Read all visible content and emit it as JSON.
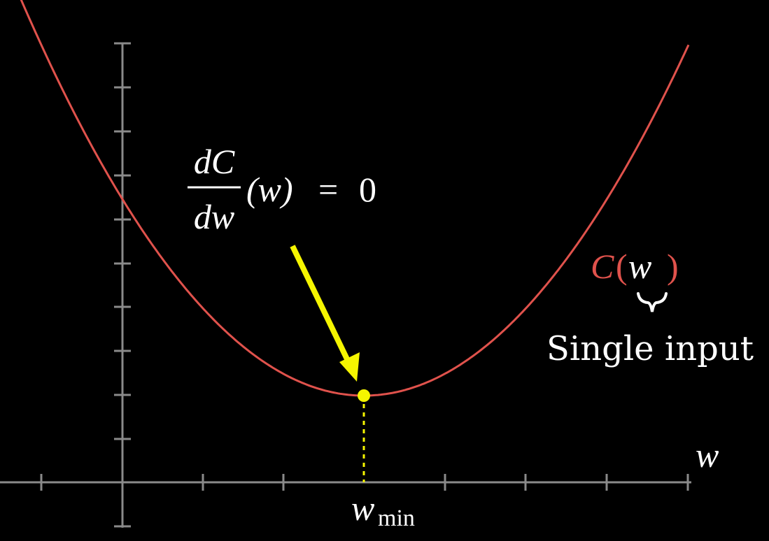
{
  "colors": {
    "background": "#000000",
    "axis": "#8a8a8a",
    "curve": "#e0524c",
    "highlight": "#f5f500",
    "text": "#ffffff"
  },
  "curve": {
    "function_name": "C",
    "variable": "w",
    "label_open_paren": "(",
    "label_close_paren": ")"
  },
  "axes": {
    "x_label": "w"
  },
  "minimum": {
    "label_base": "w",
    "label_subscript": "min"
  },
  "derivative": {
    "numerator": "dC",
    "denominator": "dw",
    "argument": "(w)",
    "equals": "=",
    "value": "0"
  },
  "annotation": {
    "text": "Single input",
    "brace_icon": "down-brace-icon"
  }
}
